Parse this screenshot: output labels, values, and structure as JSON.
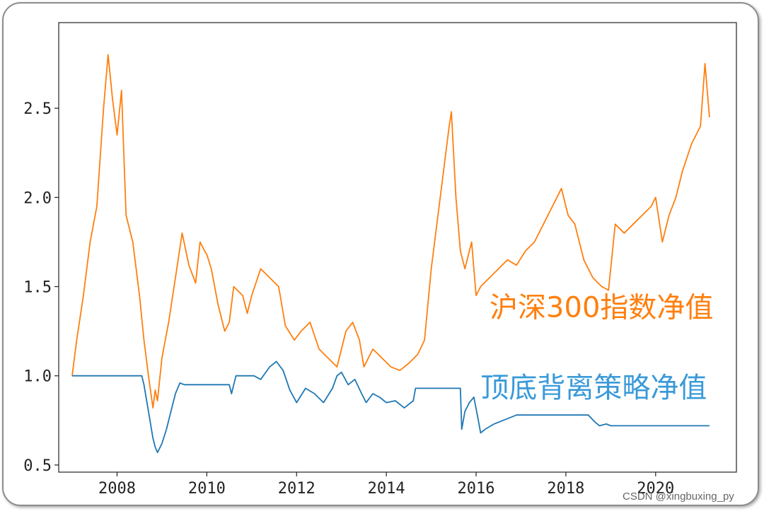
{
  "chart_data": {
    "type": "line",
    "title": "",
    "xlabel": "",
    "ylabel": "",
    "xlim": [
      2006.7,
      2021.8
    ],
    "ylim": [
      0.46,
      2.98
    ],
    "x_ticks": [
      2008,
      2010,
      2012,
      2014,
      2016,
      2018,
      2020
    ],
    "x_tick_labels": [
      "2008",
      "2010",
      "2012",
      "2014",
      "2016",
      "2018",
      "2020"
    ],
    "y_ticks": [
      0.5,
      1.0,
      1.5,
      2.0,
      2.5
    ],
    "y_tick_labels": [
      "0.5",
      "1.0",
      "1.5",
      "2.0",
      "2.5"
    ],
    "grid": false,
    "series": [
      {
        "name": "沪深300指数净值",
        "color": "#ff7f0e",
        "x": [
          2007.0,
          2007.1,
          2007.25,
          2007.4,
          2007.55,
          2007.7,
          2007.8,
          2007.9,
          2008.0,
          2008.1,
          2008.2,
          2008.35,
          2008.5,
          2008.6,
          2008.7,
          2008.8,
          2008.85,
          2008.9,
          2009.0,
          2009.15,
          2009.3,
          2009.45,
          2009.6,
          2009.75,
          2009.85,
          2009.95,
          2010.0,
          2010.1,
          2010.25,
          2010.4,
          2010.5,
          2010.6,
          2010.8,
          2010.9,
          2011.0,
          2011.2,
          2011.4,
          2011.6,
          2011.75,
          2011.95,
          2012.1,
          2012.3,
          2012.5,
          2012.7,
          2012.9,
          2013.1,
          2013.25,
          2013.4,
          2013.5,
          2013.7,
          2013.9,
          2014.1,
          2014.3,
          2014.5,
          2014.7,
          2014.85,
          2015.0,
          2015.2,
          2015.4,
          2015.45,
          2015.55,
          2015.65,
          2015.75,
          2015.9,
          2016.0,
          2016.1,
          2016.3,
          2016.5,
          2016.7,
          2016.9,
          2017.1,
          2017.3,
          2017.5,
          2017.7,
          2017.9,
          2018.05,
          2018.2,
          2018.4,
          2018.6,
          2018.8,
          2018.95,
          2019.1,
          2019.3,
          2019.5,
          2019.7,
          2019.9,
          2020.0,
          2020.15,
          2020.3,
          2020.45,
          2020.6,
          2020.8,
          2021.0,
          2021.1,
          2021.2
        ],
        "values": [
          1.0,
          1.2,
          1.45,
          1.75,
          1.95,
          2.5,
          2.8,
          2.55,
          2.35,
          2.6,
          1.9,
          1.75,
          1.45,
          1.2,
          1.0,
          0.82,
          0.92,
          0.86,
          1.1,
          1.3,
          1.55,
          1.8,
          1.62,
          1.52,
          1.75,
          1.7,
          1.68,
          1.6,
          1.4,
          1.25,
          1.3,
          1.5,
          1.45,
          1.35,
          1.45,
          1.6,
          1.55,
          1.5,
          1.28,
          1.2,
          1.25,
          1.3,
          1.15,
          1.1,
          1.05,
          1.25,
          1.3,
          1.2,
          1.05,
          1.15,
          1.1,
          1.05,
          1.03,
          1.07,
          1.12,
          1.2,
          1.6,
          2.0,
          2.4,
          2.48,
          2.0,
          1.7,
          1.6,
          1.75,
          1.45,
          1.5,
          1.55,
          1.6,
          1.65,
          1.62,
          1.7,
          1.75,
          1.85,
          1.95,
          2.05,
          1.9,
          1.85,
          1.65,
          1.55,
          1.5,
          1.48,
          1.85,
          1.8,
          1.85,
          1.9,
          1.95,
          2.0,
          1.75,
          1.9,
          2.0,
          2.15,
          2.3,
          2.4,
          2.75,
          2.45
        ]
      },
      {
        "name": "顶底背离策略净值",
        "color": "#1f77b4",
        "x": [
          2007.0,
          2007.5,
          2008.0,
          2008.55,
          2008.6,
          2008.7,
          2008.8,
          2008.85,
          2008.9,
          2009.0,
          2009.1,
          2009.2,
          2009.3,
          2009.4,
          2009.5,
          2010.0,
          2010.5,
          2010.55,
          2010.6,
          2010.65,
          2011.0,
          2011.05,
          2011.2,
          2011.4,
          2011.55,
          2011.7,
          2011.85,
          2012.0,
          2012.2,
          2012.4,
          2012.6,
          2012.8,
          2012.9,
          2013.0,
          2013.15,
          2013.3,
          2013.45,
          2013.55,
          2013.7,
          2013.85,
          2014.0,
          2014.2,
          2014.4,
          2014.6,
          2014.65,
          2015.0,
          2015.4,
          2015.65,
          2015.68,
          2015.75,
          2015.85,
          2015.95,
          2016.05,
          2016.1,
          2016.2,
          2016.4,
          2016.6,
          2016.8,
          2016.9,
          2017.3,
          2017.8,
          2018.5,
          2018.65,
          2018.75,
          2018.9,
          2019.0,
          2019.5,
          2020.0,
          2021.2
        ],
        "values": [
          1.0,
          1.0,
          1.0,
          1.0,
          0.95,
          0.8,
          0.65,
          0.6,
          0.57,
          0.62,
          0.7,
          0.8,
          0.9,
          0.96,
          0.95,
          0.95,
          0.95,
          0.9,
          0.95,
          1.0,
          1.0,
          1.0,
          0.98,
          1.05,
          1.08,
          1.03,
          0.92,
          0.85,
          0.93,
          0.9,
          0.85,
          0.93,
          1.0,
          1.02,
          0.95,
          0.98,
          0.9,
          0.85,
          0.9,
          0.88,
          0.85,
          0.86,
          0.82,
          0.86,
          0.93,
          0.93,
          0.93,
          0.93,
          0.7,
          0.8,
          0.85,
          0.88,
          0.75,
          0.68,
          0.7,
          0.73,
          0.75,
          0.77,
          0.78,
          0.78,
          0.78,
          0.78,
          0.74,
          0.72,
          0.73,
          0.72,
          0.72,
          0.72,
          0.72
        ]
      }
    ],
    "annotations": [
      {
        "text": "沪深300指数净值",
        "color": "#ff7f0e",
        "at": [
          2016.3,
          1.33
        ]
      },
      {
        "text": "顶底背离策略净值",
        "color": "#3a9ad9",
        "at": [
          2016.1,
          0.88
        ]
      }
    ]
  },
  "watermark": "CSDN @xingbuxing_py"
}
